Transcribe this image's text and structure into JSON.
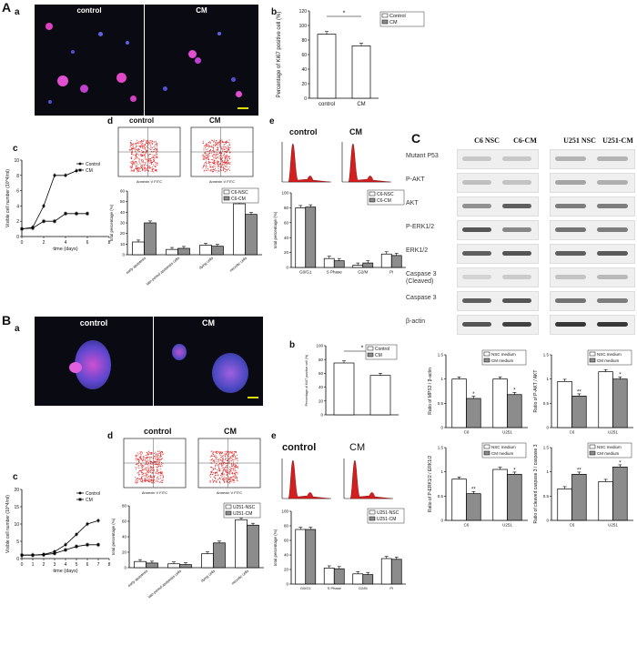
{
  "panels": {
    "A": "A",
    "B": "B",
    "C": "C",
    "Aa": "a",
    "Ab": "b",
    "Ac": "c",
    "Ad": "d",
    "Ae": "e",
    "Ba": "a",
    "Bb": "b",
    "Bc": "c",
    "Bd": "d",
    "Be": "e"
  },
  "micro": {
    "control": "control",
    "cm": "CM"
  },
  "cond": {
    "control": "control",
    "cm": "CM"
  },
  "annexin_axis": "Annexin V FITC",
  "stats": {
    "sig": "*",
    "sig2": "**"
  },
  "chart_data": [
    {
      "id": "A-b",
      "type": "bar",
      "categories": [
        "control",
        "CM"
      ],
      "values": [
        88,
        72
      ],
      "ylabel": "Percentage of Ki67 positive cell (%)",
      "ylim": [
        0,
        120
      ],
      "yticks": [
        0,
        20,
        40,
        60,
        80,
        100,
        120
      ],
      "legend": [
        "Control",
        "CM"
      ],
      "significance": "*"
    },
    {
      "id": "A-c",
      "type": "line",
      "x": [
        0,
        1,
        2,
        3,
        4,
        5,
        6
      ],
      "series": [
        {
          "name": "Control",
          "values": [
            1,
            1.2,
            4,
            8,
            8,
            8.6,
            null
          ]
        },
        {
          "name": "CM",
          "values": [
            1,
            1.1,
            2,
            2,
            3,
            3,
            3
          ]
        }
      ],
      "xlabel": "time (days)",
      "ylabel": "Visible cell number (10^4/ml)",
      "ylim": [
        0,
        10
      ],
      "yticks": [
        0,
        2,
        4,
        6,
        8,
        10
      ],
      "xticks": [
        0,
        2,
        4,
        6,
        8
      ]
    },
    {
      "id": "A-d",
      "type": "bar",
      "categories": [
        "early apoptosis",
        "late-period apoptosis cells",
        "dying cells",
        "necrotic cells"
      ],
      "series": [
        {
          "name": "C6-NSC",
          "values": [
            12,
            5,
            9,
            48
          ]
        },
        {
          "name": "C6-CM",
          "values": [
            30,
            6,
            8,
            38
          ]
        }
      ],
      "ylabel": "total percentage (%)",
      "ylim": [
        0,
        60
      ],
      "yticks": [
        0,
        10,
        20,
        30,
        40,
        50,
        60
      ]
    },
    {
      "id": "A-e",
      "type": "bar",
      "categories": [
        "G0/G1",
        "S Phase",
        "G2/M",
        "PI"
      ],
      "series": [
        {
          "name": "C6-NSC",
          "values": [
            80,
            12,
            3,
            18
          ]
        },
        {
          "name": "C6-CM",
          "values": [
            81,
            9,
            6,
            16
          ]
        }
      ],
      "ylabel": "total percentage (%)",
      "ylim": [
        0,
        100
      ],
      "yticks": [
        0,
        20,
        40,
        60,
        80,
        100
      ]
    },
    {
      "id": "B-b",
      "type": "bar",
      "categories": [
        "",
        ""
      ],
      "values": [
        75,
        57
      ],
      "ylabel": "Percentage of Ki67 positive cell (%)",
      "ylim": [
        0,
        100
      ],
      "yticks": [
        0,
        20,
        40,
        60,
        80,
        100
      ],
      "legend": [
        "Control",
        "CM"
      ],
      "significance": "*"
    },
    {
      "id": "B-c",
      "type": "line",
      "x": [
        0,
        1,
        2,
        3,
        4,
        5,
        6,
        7
      ],
      "series": [
        {
          "name": "Control",
          "values": [
            1,
            1,
            1.2,
            2,
            4,
            7,
            10,
            11
          ]
        },
        {
          "name": "CM",
          "values": [
            1,
            1,
            1.1,
            1.5,
            2.5,
            3.5,
            4,
            4
          ]
        }
      ],
      "xlabel": "time (days)",
      "ylabel": "Visible cell number (10^4/ml)",
      "ylim": [
        0,
        20
      ],
      "yticks": [
        0,
        5,
        10,
        15,
        20
      ],
      "xticks": [
        0,
        1,
        2,
        3,
        4,
        5,
        6,
        7,
        8
      ]
    },
    {
      "id": "B-d",
      "type": "bar",
      "categories": [
        "early apoptosis",
        "late-period apoptosis cells",
        "dying cells",
        "necrotic cells"
      ],
      "series": [
        {
          "name": "U251-NSC",
          "values": [
            8,
            5,
            18,
            62
          ]
        },
        {
          "name": "U251-CM",
          "values": [
            6,
            4,
            32,
            55
          ]
        }
      ],
      "ylabel": "total percentage (%)",
      "ylim": [
        0,
        80
      ],
      "yticks": [
        0,
        20,
        40,
        60,
        80
      ]
    },
    {
      "id": "B-e",
      "type": "bar",
      "categories": [
        "G0/G1",
        "S Phase",
        "G2/M",
        "PI"
      ],
      "series": [
        {
          "name": "U251-NSC",
          "values": [
            75,
            22,
            14,
            35
          ]
        },
        {
          "name": "U251-CM",
          "values": [
            75,
            21,
            13,
            34
          ]
        }
      ],
      "ylabel": "total percentage (%)",
      "ylim": [
        0,
        100
      ],
      "yticks": [
        0,
        20,
        40,
        60,
        80,
        100
      ]
    },
    {
      "id": "C-q1",
      "type": "bar",
      "categories": [
        "C6",
        "U251"
      ],
      "series": [
        {
          "name": "NSC medium",
          "values": [
            1.0,
            1.0
          ]
        },
        {
          "name": "CM medium",
          "values": [
            0.6,
            0.68
          ]
        }
      ],
      "ylabel": "Ratio of MPS3 / β-actin",
      "ylim": [
        0,
        1.5
      ],
      "yticks": [
        0,
        0.5,
        1.0,
        1.5
      ],
      "significance": [
        "*",
        "*"
      ]
    },
    {
      "id": "C-q2",
      "type": "bar",
      "categories": [
        "C6",
        "U251"
      ],
      "series": [
        {
          "name": "NSC medium",
          "values": [
            0.95,
            1.15
          ]
        },
        {
          "name": "CM medium",
          "values": [
            0.65,
            1.0
          ]
        }
      ],
      "ylabel": "Ratio of P-AKT / AKT",
      "ylim": [
        0,
        1.5
      ],
      "yticks": [
        0,
        0.5,
        1.0,
        1.5
      ],
      "significance": [
        "**",
        "*"
      ]
    },
    {
      "id": "C-q3",
      "type": "bar",
      "categories": [
        "C6",
        "U251"
      ],
      "series": [
        {
          "name": "NSC medium",
          "values": [
            0.85,
            1.05
          ]
        },
        {
          "name": "CM medium",
          "values": [
            0.55,
            0.95
          ]
        }
      ],
      "ylabel": "Ratio of P-ERK1/2 / ERK1/2",
      "ylim": [
        0,
        1.5
      ],
      "yticks": [
        0,
        0.5,
        1.0,
        1.5
      ],
      "significance": [
        "**",
        "*"
      ]
    },
    {
      "id": "C-q4",
      "type": "bar",
      "categories": [
        "C6",
        "U251"
      ],
      "series": [
        {
          "name": "NSC medium",
          "values": [
            0.65,
            0.8
          ]
        },
        {
          "name": "CM medium",
          "values": [
            0.95,
            1.1
          ]
        }
      ],
      "ylabel": "Ratio of cleaved caspase 3 / caspase 3",
      "ylim": [
        0,
        1.5
      ],
      "yticks": [
        0,
        0.5,
        1.0,
        1.5
      ],
      "significance": [
        "**",
        "*"
      ]
    }
  ],
  "blot": {
    "headers": [
      "C6 NSC",
      "C6-CM",
      "U251 NSC",
      "U251-CM"
    ],
    "rows": [
      {
        "label": "Mutant P53",
        "i": [
          0.18,
          0.18,
          0.28,
          0.28
        ]
      },
      {
        "label": "P-AKT",
        "i": [
          0.22,
          0.2,
          0.35,
          0.3
        ]
      },
      {
        "label": "AKT",
        "i": [
          0.45,
          0.7,
          0.55,
          0.55
        ]
      },
      {
        "label": "P-ERK1/2",
        "i": [
          0.75,
          0.5,
          0.6,
          0.55
        ]
      },
      {
        "label": "ERK1/2",
        "i": [
          0.7,
          0.75,
          0.7,
          0.72
        ]
      },
      {
        "label": "Caspase 3 (Cleaved)",
        "i": [
          0.12,
          0.16,
          0.2,
          0.25
        ]
      },
      {
        "label": "Caspase 3",
        "i": [
          0.7,
          0.75,
          0.6,
          0.55
        ]
      },
      {
        "label": "β-actin",
        "i": [
          0.75,
          0.85,
          0.9,
          0.9
        ]
      }
    ]
  },
  "colors": {
    "bar_control": "#ffffff",
    "bar_cm": "#8c8c8c",
    "dots": "#e02020",
    "hist": "#d41f1f"
  }
}
